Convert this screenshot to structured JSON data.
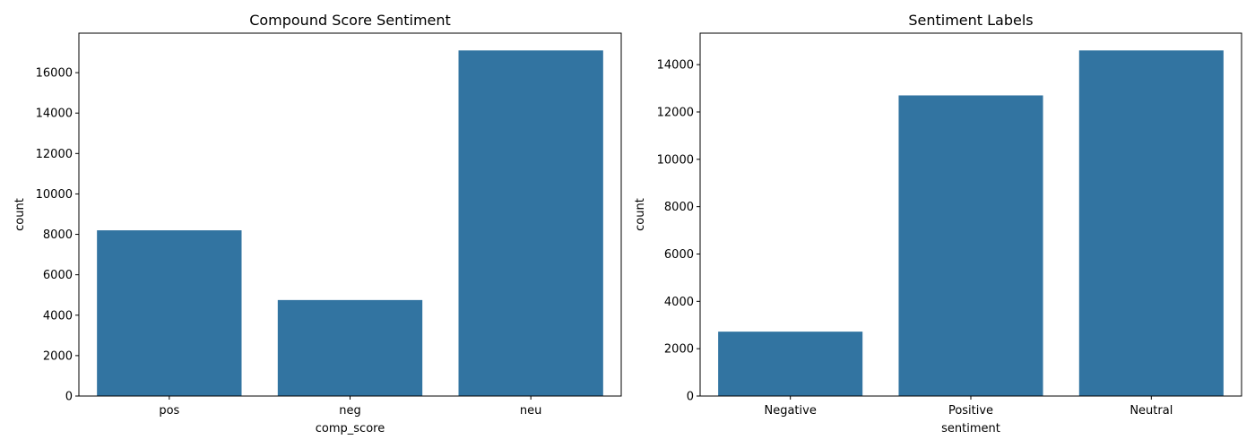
{
  "colors": {
    "bar": "#3274a1",
    "axis": "#000000",
    "background": "#ffffff"
  },
  "chart_data": [
    {
      "type": "bar",
      "title": "Compound Score Sentiment",
      "xlabel": "comp_score",
      "ylabel": "count",
      "categories": [
        "pos",
        "neg",
        "neu"
      ],
      "values": [
        8200,
        4750,
        17100
      ],
      "ylim": [
        0,
        17955
      ],
      "yticks": [
        0,
        2000,
        4000,
        6000,
        8000,
        10000,
        12000,
        14000,
        16000
      ],
      "grid": false,
      "legend": "none"
    },
    {
      "type": "bar",
      "title": "Sentiment Labels",
      "xlabel": "sentiment",
      "ylabel": "count",
      "categories": [
        "Negative",
        "Positive",
        "Neutral"
      ],
      "values": [
        2720,
        12700,
        14600
      ],
      "ylim": [
        0,
        15330
      ],
      "yticks": [
        0,
        2000,
        4000,
        6000,
        8000,
        10000,
        12000,
        14000
      ],
      "grid": false,
      "legend": "none"
    }
  ]
}
